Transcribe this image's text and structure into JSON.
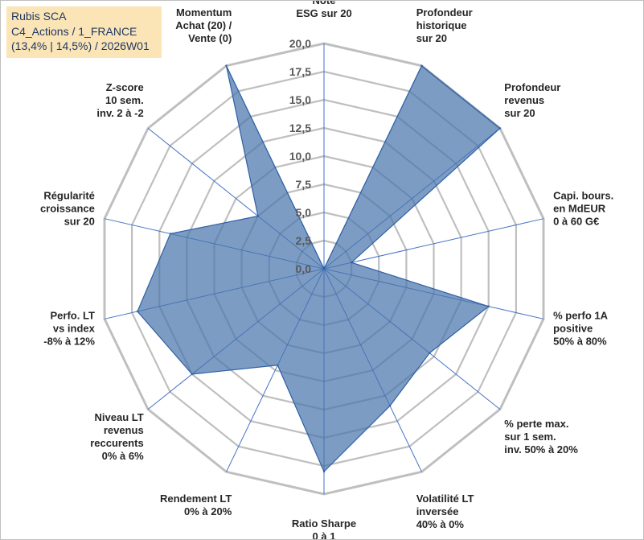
{
  "title": {
    "line1": "Rubis SCA",
    "line2": "C4_Actions / 1_FRANCE",
    "line3": "(13,4% | 14,5%) / 2026W01"
  },
  "chart_data": {
    "type": "radar",
    "rlim": [
      0,
      20
    ],
    "ticks": [
      "0,0",
      "2,5",
      "5,0",
      "7,5",
      "10,0",
      "12,5",
      "15,0",
      "17,5",
      "20,0"
    ],
    "categories": [
      [
        "Note",
        "ESG sur 20"
      ],
      [
        "Profondeur",
        "historique",
        "sur 20"
      ],
      [
        "Profondeur",
        "revenus",
        "sur 20"
      ],
      [
        "Capi. bours.",
        "en MdEUR",
        "0 à 60 G€"
      ],
      [
        "% perfo 1A",
        "positive",
        "50% à 80%"
      ],
      [
        "% perte max.",
        "sur 1 sem.",
        "inv. 50% à 20%"
      ],
      [
        "Volatilité LT",
        "inversée",
        "40% à 0%"
      ],
      [
        "Ratio Sharpe",
        "0 à 1"
      ],
      [
        "Rendement LT",
        "0% à 20%"
      ],
      [
        "Niveau LT",
        "revenus",
        "reccurents",
        "0% à 6%"
      ],
      [
        "Perfo. LT",
        "vs index",
        "-8% à 12%"
      ],
      [
        "Régularité",
        "croissance",
        "sur 20"
      ],
      [
        "Z-score",
        "10 sem.",
        "inv. 2 à -2"
      ],
      [
        "Momentum",
        "Achat (20) /",
        "Vente (0)"
      ]
    ],
    "series": [
      {
        "name": "Rubis SCA",
        "values": [
          0.0,
          20.0,
          20.0,
          2.5,
          15.0,
          12.0,
          13.5,
          18.0,
          9.5,
          15.0,
          17.0,
          14.0,
          7.5,
          20.0
        ]
      }
    ],
    "colors": {
      "fill": "#4a76ad",
      "fill_opacity": "0.72",
      "stroke": "#2e5fa5",
      "grid": "#bfbfbf",
      "spoke": "#4472c4"
    }
  }
}
